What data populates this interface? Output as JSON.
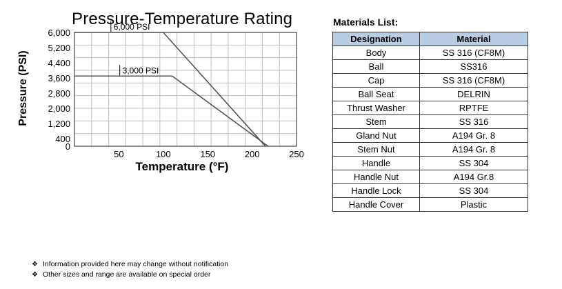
{
  "chart_data": {
    "type": "line",
    "title": "Pressure-Temperature Rating",
    "xlabel": "Temperature (°F)",
    "ylabel": "Pressure (PSI)",
    "xlim": [
      0,
      250
    ],
    "ylim": [
      0,
      6000
    ],
    "xticks": [
      "50",
      "100",
      "150",
      "200",
      "250"
    ],
    "xtick_values": [
      50,
      100,
      150,
      200,
      250
    ],
    "yticks": [
      "0",
      "400",
      "1,200",
      "2,000",
      "2,800",
      "3,600",
      "4,400",
      "5,200",
      "6,000"
    ],
    "ytick_values": [
      0,
      400,
      1200,
      2000,
      2800,
      3600,
      4400,
      5200,
      6000
    ],
    "grid": true,
    "series": [
      {
        "name": "6,000 PSI",
        "x": [
          0,
          100,
          215
        ],
        "y": [
          6000,
          6000,
          0
        ]
      },
      {
        "name": "3,000 PSI",
        "x": [
          0,
          110,
          218
        ],
        "y": [
          3700,
          3700,
          0
        ]
      }
    ],
    "color": "#555555"
  },
  "materials": {
    "title": "Materials List:",
    "headers": [
      "Designation",
      "Material"
    ],
    "rows": [
      [
        "Body",
        "SS 316 (CF8M)"
      ],
      [
        "Ball",
        "SS316"
      ],
      [
        "Cap",
        "SS 316 (CF8M)"
      ],
      [
        "Ball Seat",
        "DELRIN"
      ],
      [
        "Thrust Washer",
        "RPTFE"
      ],
      [
        "Stem",
        "SS 316"
      ],
      [
        "Gland Nut",
        "A194 Gr. 8"
      ],
      [
        "Stem Nut",
        "A194 Gr. 8"
      ],
      [
        "Handle",
        "SS 304"
      ],
      [
        "Handle Nut",
        "A194 Gr.8"
      ],
      [
        "Handle Lock",
        "SS 304"
      ],
      [
        "Handle Cover",
        "Plastic"
      ]
    ],
    "header_color": "#b8cce4"
  },
  "notes": {
    "bullet_icon": "diamond-bullet-icon",
    "items": [
      "Information provided here may change without notification",
      "Other sizes and range are available on special order"
    ]
  }
}
